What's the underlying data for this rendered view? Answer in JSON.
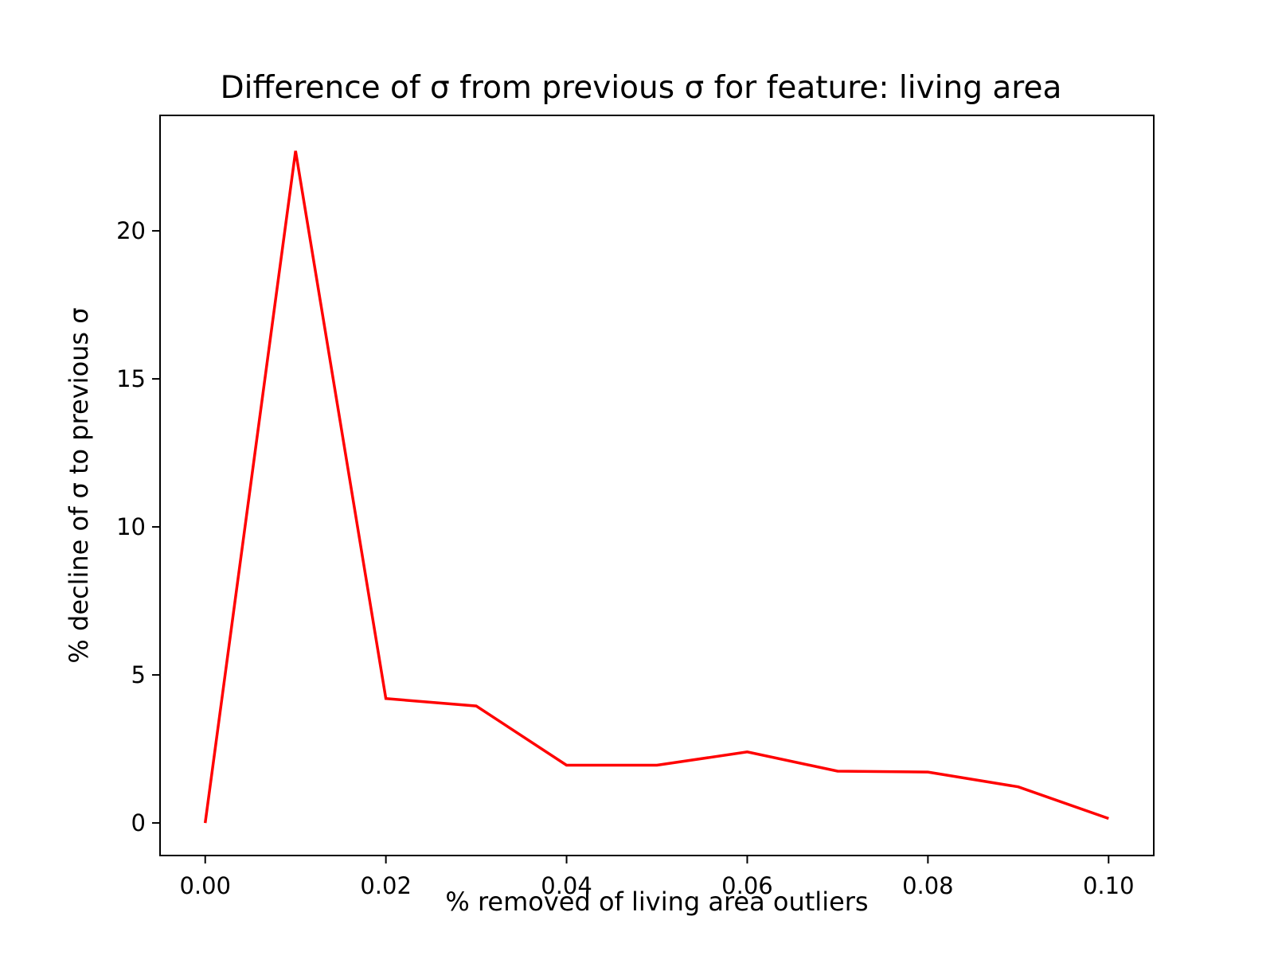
{
  "chart_data": {
    "type": "line",
    "title": "Difference of σ from previous σ for feature: living area",
    "xlabel": "% removed of living area outliers",
    "ylabel": "% decline of σ to previous σ",
    "xlim": [
      -0.005,
      0.105
    ],
    "ylim": [
      -1.1,
      23.9
    ],
    "xticks": [
      0.0,
      0.02,
      0.04,
      0.06,
      0.08,
      0.1
    ],
    "xtick_labels": [
      "0.00",
      "0.02",
      "0.04",
      "0.06",
      "0.08",
      "0.10"
    ],
    "yticks": [
      0,
      5,
      10,
      15,
      20
    ],
    "ytick_labels": [
      "0",
      "5",
      "10",
      "15",
      "20"
    ],
    "grid": false,
    "series": [
      {
        "color": "#ff0000",
        "x": [
          0.0,
          0.01,
          0.02,
          0.03,
          0.04,
          0.05,
          0.06,
          0.07,
          0.08,
          0.09,
          0.1
        ],
        "y": [
          0.0,
          22.7,
          4.2,
          3.95,
          1.95,
          1.95,
          2.4,
          1.75,
          1.72,
          1.22,
          0.15
        ]
      }
    ]
  }
}
